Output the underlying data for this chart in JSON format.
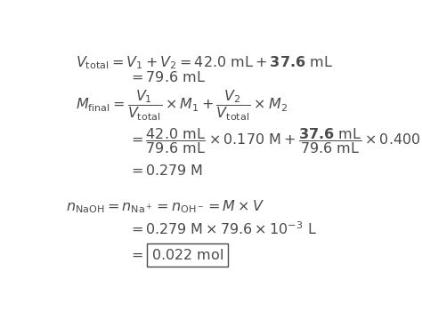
{
  "bg_color": "#ffffff",
  "text_color": "#4a4a4a",
  "fig_width": 4.74,
  "fig_height": 3.77,
  "fontsize": 11.5
}
